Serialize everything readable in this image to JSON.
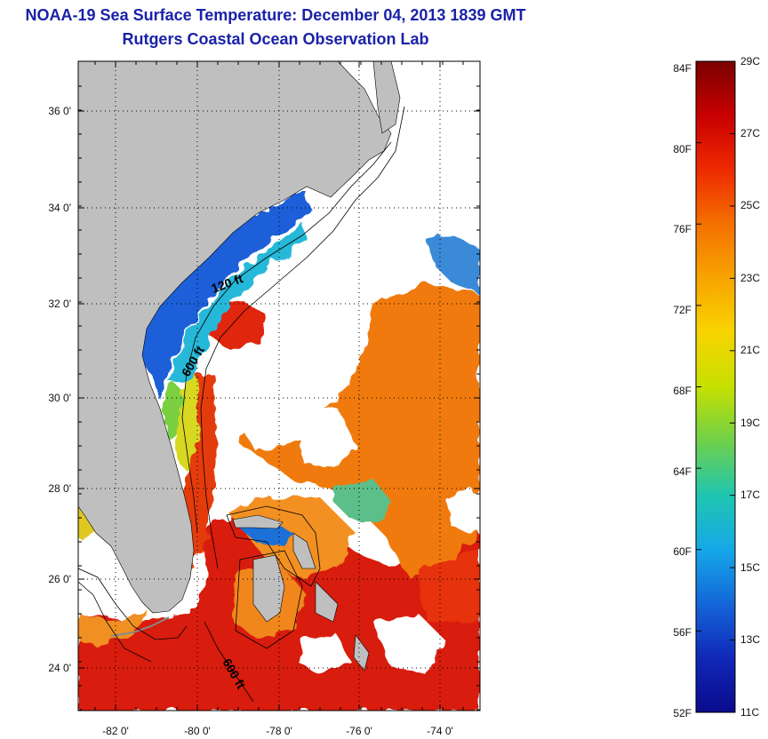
{
  "header": {
    "title": "NOAA-19 Sea Surface Temperature:  December 04, 2013 1839 GMT",
    "subtitle": "Rutgers Coastal Ocean Observation Lab"
  },
  "map": {
    "lat_ticks": [
      "36 0'",
      "34 0'",
      "32 0'",
      "30 0'",
      "28 0'",
      "26 0'",
      "24 0'"
    ],
    "lon_ticks": [
      "-82 0'",
      "-80 0'",
      "-78 0'",
      "-76 0'",
      "-74 0'"
    ],
    "isobath_labels": [
      "120 ft",
      "600 ft",
      "600 ft"
    ],
    "colors": {
      "land": "#bfbfbf",
      "cloud": "#ffffff",
      "frame": "#000000"
    }
  },
  "colorbar": {
    "f_labels": [
      "84F",
      "80F",
      "76F",
      "72F",
      "68F",
      "64F",
      "60F",
      "56F",
      "52F"
    ],
    "c_labels": [
      "29C",
      "27C",
      "25C",
      "23C",
      "21C",
      "19C",
      "17C",
      "15C",
      "13C",
      "11C"
    ],
    "gradient": [
      "#7a0000",
      "#c80000",
      "#ee2a00",
      "#f47000",
      "#f8a400",
      "#f8d400",
      "#c6e000",
      "#6fd04a",
      "#1fc6b0",
      "#15a8e8",
      "#1466d8",
      "#1028b8",
      "#0a0a8c"
    ]
  }
}
